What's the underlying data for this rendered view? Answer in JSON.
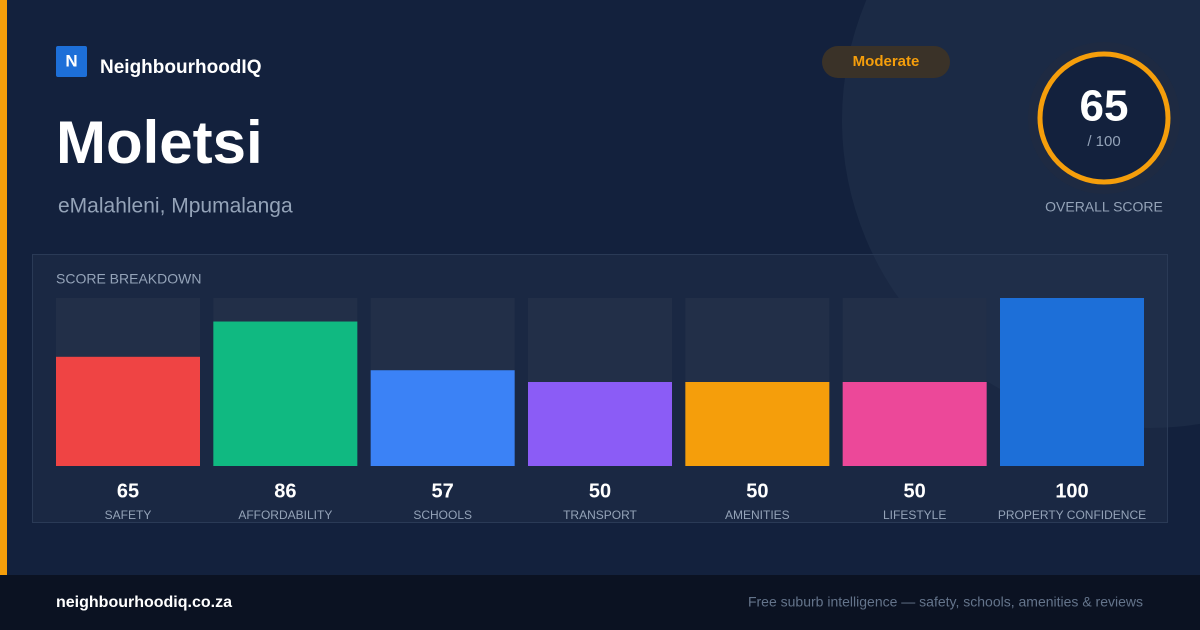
{
  "brand": {
    "logo": "N",
    "name": "NeighbourhoodIQ"
  },
  "suburb": "Moletsi",
  "location": "eMalahleni, Mpumalanga",
  "badge": "Moderate",
  "overall": {
    "score": 65,
    "max_label": "/ 100",
    "label": "OVERALL SCORE"
  },
  "chart_data": {
    "type": "bar",
    "title": "SCORE BREAKDOWN",
    "categories": [
      "SAFETY",
      "AFFORDABILITY",
      "SCHOOLS",
      "TRANSPORT",
      "AMENITIES",
      "LIFESTYLE",
      "PROPERTY CONFIDENCE"
    ],
    "values": [
      65,
      86,
      57,
      50,
      50,
      50,
      100
    ],
    "colors": [
      "#ef4444",
      "#10b981",
      "#3b82f6",
      "#8b5cf6",
      "#f59e0b",
      "#ec4899",
      "#1d6fd8"
    ],
    "ylim": [
      0,
      100
    ]
  },
  "footer": {
    "site": "neighbourhoodiq.co.za",
    "tagline": "Free suburb intelligence — safety, schools, amenities & reviews"
  }
}
